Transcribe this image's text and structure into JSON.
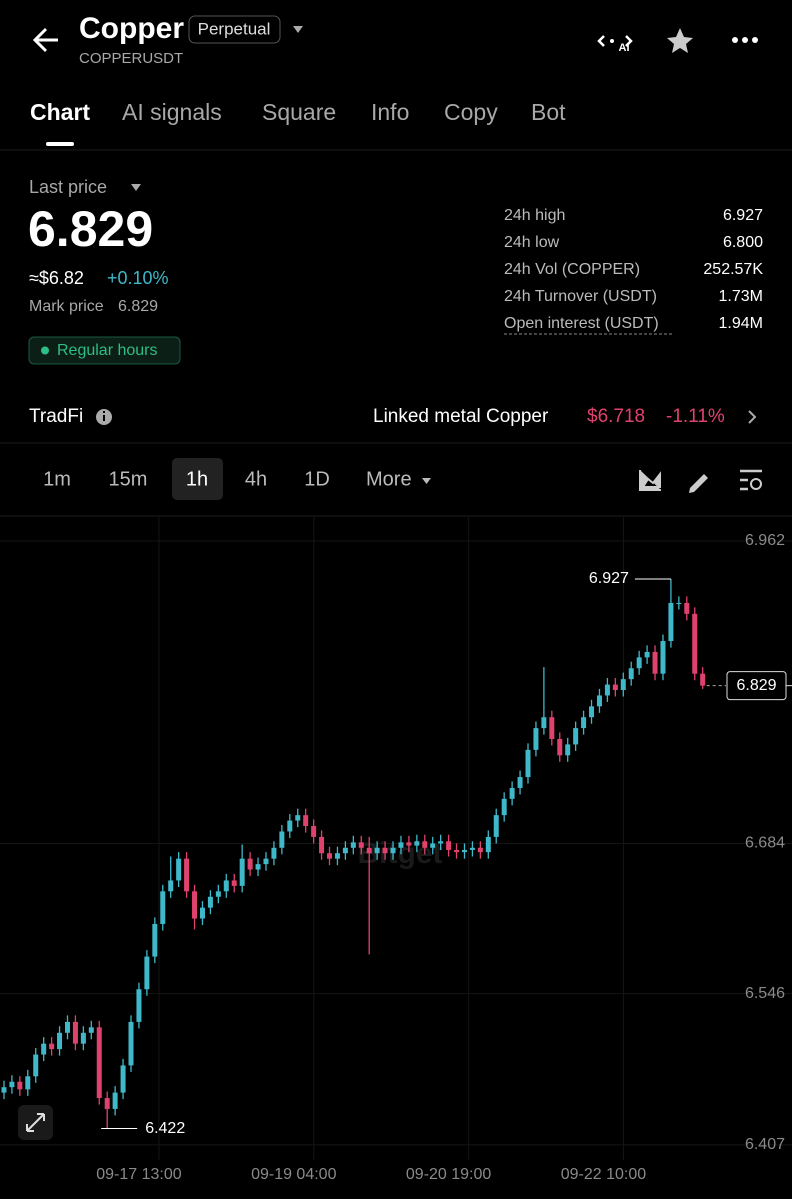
{
  "header": {
    "title": "Copper",
    "badge": "Perpetual",
    "symbol": "COPPERUSDT",
    "ai_icon": "AI"
  },
  "tabs": [
    "Chart",
    "AI signals",
    "Square",
    "Info",
    "Copy",
    "Bot"
  ],
  "price_panel": {
    "label": "Last price",
    "price": "6.829",
    "usd_price": "≈$6.82",
    "change": "+0.10%",
    "mark_price_label": "Mark price",
    "mark_price": "6.829",
    "session": "Regular hours",
    "stats": [
      {
        "label": "24h high",
        "value": "6.927"
      },
      {
        "label": "24h low",
        "value": "6.800"
      },
      {
        "label": "24h Vol (COPPER)",
        "value": "252.57K"
      },
      {
        "label": "24h Turnover (USDT)",
        "value": "1.73M"
      },
      {
        "label": "Open interest (USDT)",
        "value": "1.94M"
      }
    ]
  },
  "tradfi": {
    "label": "TradFi",
    "linked_label": "Linked metal Copper",
    "linked_price": "$6.718",
    "linked_change": "-1.11%"
  },
  "timeframes": {
    "options": [
      "1m",
      "15m",
      "1h",
      "4h",
      "1D",
      "More"
    ],
    "selected": "1h"
  },
  "chart_data": {
    "type": "candlestick",
    "watermark": "Bitget",
    "up_color": "#3fb8c9",
    "down_color": "#e0426e",
    "grid": true,
    "ylim": [
      6.394,
      6.984
    ],
    "yticks": [
      6.962,
      6.684,
      6.546,
      6.407
    ],
    "xlim": [
      -1,
      198.5
    ],
    "xticks": [
      {
        "value": 34,
        "label": "09-17 13:00"
      },
      {
        "value": 73,
        "label": "09-19 04:00"
      },
      {
        "value": 112,
        "label": "09-20 19:00"
      },
      {
        "value": 151,
        "label": "09-22 10:00"
      }
    ],
    "high_annotation": 6.927,
    "low_annotation": 6.422,
    "last_price": 6.829,
    "x": [
      0,
      2,
      4,
      6,
      8,
      10,
      12,
      14,
      16,
      18,
      20,
      22,
      24,
      26,
      28,
      30,
      32,
      34,
      36,
      38,
      40,
      42,
      44,
      46,
      48,
      50,
      52,
      54,
      56,
      58,
      60,
      62,
      64,
      66,
      68,
      70,
      72,
      74,
      76,
      78,
      80,
      82,
      84,
      86,
      88,
      90,
      92,
      94,
      96,
      98,
      100,
      102,
      104,
      106,
      108,
      110,
      112,
      114,
      116,
      118,
      120,
      122,
      124,
      126,
      128,
      130,
      132,
      134,
      136,
      138,
      140,
      142,
      144,
      146,
      148,
      150,
      152,
      154,
      156,
      158,
      160,
      162,
      164,
      166,
      168,
      170,
      172,
      174,
      176
    ],
    "candles": [
      [
        6.455,
        6.466,
        6.449,
        6.46
      ],
      [
        6.46,
        6.471,
        6.454,
        6.465
      ],
      [
        6.465,
        6.47,
        6.452,
        6.458
      ],
      [
        6.458,
        6.476,
        6.452,
        6.47
      ],
      [
        6.47,
        6.496,
        6.464,
        6.49
      ],
      [
        6.49,
        6.506,
        6.484,
        6.5
      ],
      [
        6.5,
        6.506,
        6.489,
        6.495
      ],
      [
        6.495,
        6.516,
        6.489,
        6.51
      ],
      [
        6.51,
        6.526,
        6.504,
        6.52
      ],
      [
        6.52,
        6.526,
        6.494,
        6.5
      ],
      [
        6.5,
        6.516,
        6.494,
        6.51
      ],
      [
        6.51,
        6.521,
        6.504,
        6.515
      ],
      [
        6.515,
        6.521,
        6.444,
        6.45
      ],
      [
        6.45,
        6.456,
        6.422,
        6.44
      ],
      [
        6.44,
        6.461,
        6.434,
        6.455
      ],
      [
        6.455,
        6.486,
        6.449,
        6.48
      ],
      [
        6.48,
        6.526,
        6.474,
        6.52
      ],
      [
        6.52,
        6.556,
        6.514,
        6.55
      ],
      [
        6.55,
        6.586,
        6.544,
        6.58
      ],
      [
        6.58,
        6.616,
        6.574,
        6.61
      ],
      [
        6.61,
        6.646,
        6.604,
        6.64
      ],
      [
        6.64,
        6.672,
        6.634,
        6.65
      ],
      [
        6.65,
        6.676,
        6.644,
        6.67
      ],
      [
        6.67,
        6.676,
        6.634,
        6.64
      ],
      [
        6.64,
        6.646,
        6.605,
        6.615
      ],
      [
        6.615,
        6.631,
        6.609,
        6.625
      ],
      [
        6.625,
        6.641,
        6.619,
        6.635
      ],
      [
        6.635,
        6.646,
        6.629,
        6.64
      ],
      [
        6.64,
        6.656,
        6.634,
        6.65
      ],
      [
        6.65,
        6.656,
        6.639,
        6.645
      ],
      [
        6.645,
        6.683,
        6.639,
        6.67
      ],
      [
        6.67,
        6.676,
        6.654,
        6.66
      ],
      [
        6.66,
        6.671,
        6.654,
        6.665
      ],
      [
        6.665,
        6.676,
        6.659,
        6.67
      ],
      [
        6.67,
        6.686,
        6.664,
        6.68
      ],
      [
        6.68,
        6.701,
        6.674,
        6.695
      ],
      [
        6.695,
        6.711,
        6.689,
        6.705
      ],
      [
        6.705,
        6.716,
        6.699,
        6.71
      ],
      [
        6.71,
        6.716,
        6.694,
        6.7
      ],
      [
        6.7,
        6.706,
        6.684,
        6.69
      ],
      [
        6.69,
        6.696,
        6.669,
        6.675
      ],
      [
        6.675,
        6.681,
        6.664,
        6.67
      ],
      [
        6.67,
        6.681,
        6.664,
        6.675
      ],
      [
        6.675,
        6.686,
        6.669,
        6.68
      ],
      [
        6.68,
        6.691,
        6.674,
        6.685
      ],
      [
        6.685,
        6.691,
        6.674,
        6.68
      ],
      [
        6.68,
        6.69,
        6.582,
        6.675
      ],
      [
        6.675,
        6.686,
        6.669,
        6.68
      ],
      [
        6.68,
        6.686,
        6.669,
        6.675
      ],
      [
        6.675,
        6.686,
        6.669,
        6.68
      ],
      [
        6.68,
        6.691,
        6.674,
        6.685
      ],
      [
        6.685,
        6.691,
        6.676,
        6.682
      ],
      [
        6.682,
        6.692,
        6.676,
        6.686
      ],
      [
        6.686,
        6.692,
        6.674,
        6.68
      ],
      [
        6.68,
        6.69,
        6.674,
        6.684
      ],
      [
        6.684,
        6.692,
        6.678,
        6.686
      ],
      [
        6.686,
        6.692,
        6.672,
        6.678
      ],
      [
        6.678,
        6.684,
        6.67,
        6.676
      ],
      [
        6.676,
        6.684,
        6.67,
        6.678
      ],
      [
        6.678,
        6.686,
        6.672,
        6.68
      ],
      [
        6.68,
        6.686,
        6.67,
        6.676
      ],
      [
        6.676,
        6.696,
        6.67,
        6.69
      ],
      [
        6.69,
        6.716,
        6.684,
        6.71
      ],
      [
        6.71,
        6.731,
        6.704,
        6.725
      ],
      [
        6.725,
        6.741,
        6.719,
        6.735
      ],
      [
        6.735,
        6.751,
        6.729,
        6.745
      ],
      [
        6.745,
        6.776,
        6.739,
        6.77
      ],
      [
        6.77,
        6.796,
        6.764,
        6.79
      ],
      [
        6.79,
        6.846,
        6.784,
        6.8
      ],
      [
        6.8,
        6.806,
        6.774,
        6.78
      ],
      [
        6.78,
        6.786,
        6.759,
        6.765
      ],
      [
        6.765,
        6.781,
        6.759,
        6.775
      ],
      [
        6.775,
        6.796,
        6.769,
        6.79
      ],
      [
        6.79,
        6.806,
        6.784,
        6.8
      ],
      [
        6.8,
        6.816,
        6.794,
        6.81
      ],
      [
        6.81,
        6.826,
        6.804,
        6.82
      ],
      [
        6.82,
        6.836,
        6.814,
        6.83
      ],
      [
        6.83,
        6.836,
        6.819,
        6.825
      ],
      [
        6.825,
        6.841,
        6.819,
        6.835
      ],
      [
        6.835,
        6.851,
        6.829,
        6.845
      ],
      [
        6.845,
        6.861,
        6.839,
        6.855
      ],
      [
        6.855,
        6.866,
        6.849,
        6.86
      ],
      [
        6.86,
        6.866,
        6.834,
        6.84
      ],
      [
        6.84,
        6.876,
        6.834,
        6.87
      ],
      [
        6.87,
        6.927,
        6.864,
        6.905
      ],
      [
        6.905,
        6.911,
        6.899,
        6.905
      ],
      [
        6.905,
        6.911,
        6.889,
        6.895
      ],
      [
        6.895,
        6.901,
        6.834,
        6.84
      ],
      [
        6.84,
        6.846,
        6.826,
        6.829
      ]
    ]
  }
}
